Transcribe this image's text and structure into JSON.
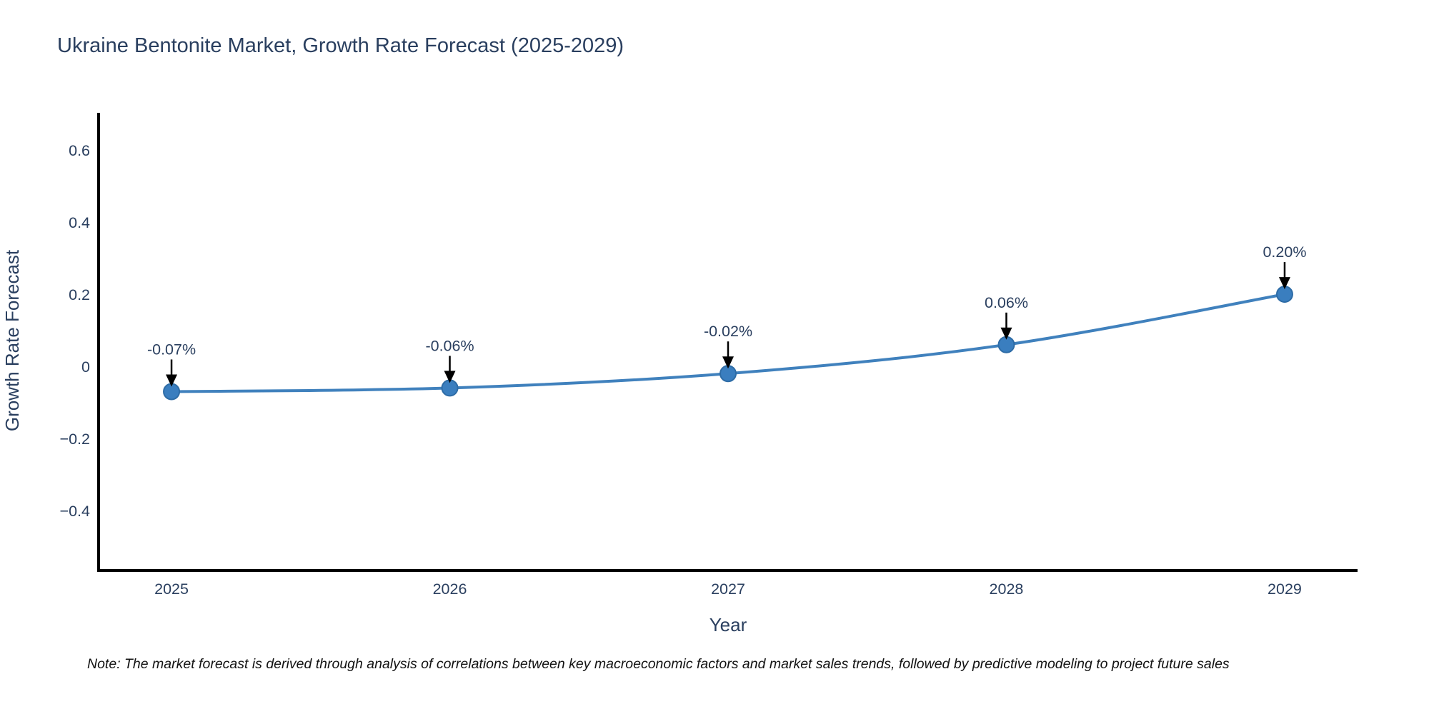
{
  "title": "Ukraine Bentonite Market, Growth Rate Forecast (2025-2029)",
  "note": "Note: The market forecast is derived through analysis of correlations between key macroeconomic factors and market sales trends, followed by predictive modeling to project future sales",
  "chart_data": {
    "type": "line",
    "title": "Ukraine Bentonite Market, Growth Rate Forecast (2025-2029)",
    "xlabel": "Year",
    "ylabel": "Growth Rate Forecast",
    "x": [
      2025,
      2026,
      2027,
      2028,
      2029
    ],
    "values": [
      -0.07,
      -0.06,
      -0.02,
      0.06,
      0.2
    ],
    "point_labels": [
      "-0.07%",
      "-0.06%",
      "-0.02%",
      "0.06%",
      "0.20%"
    ],
    "xtick_labels": [
      "2025",
      "2026",
      "2027",
      "2028",
      "2029"
    ],
    "yticks": [
      0.6,
      0.4,
      0.2,
      0,
      -0.2,
      -0.4
    ],
    "ytick_labels": [
      "0.6",
      "0.4",
      "0.2",
      "0",
      "−0.2",
      "−0.4"
    ],
    "xlim": [
      2024.738,
      2029.262
    ],
    "ylim": [
      -0.566,
      0.703
    ],
    "grid": false,
    "legend": "none",
    "colors": {
      "line": "#4081bd",
      "marker_fill": "#3a7ebf",
      "marker_edge": "#2e6ca6",
      "axis": "#000000",
      "text": "#2a3f5f",
      "annotation_arrow": "#000000"
    }
  }
}
